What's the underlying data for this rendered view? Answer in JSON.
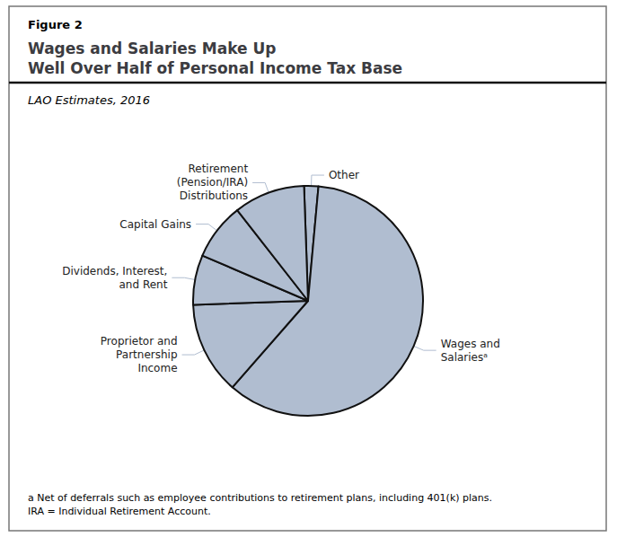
{
  "chart_data": {
    "type": "pie",
    "figure_label": "Figure 2",
    "title": "Wages and Salaries Make Up\nWell Over Half of Personal Income Tax Base",
    "subtitle": "LAO Estimates, 2016",
    "categories": [
      "Other",
      "Wages and\nSalariesᵃ",
      "Proprietor and\nPartnership\nIncome",
      "Dividends, Interest,\nand Rent",
      "Capital Gains",
      "Retirement\n(Pension/IRA)\nDistributions"
    ],
    "values": [
      2,
      60,
      13,
      7,
      8,
      10
    ],
    "color": "#b0bdd0",
    "footnotes": [
      "a Net of deferrals such as employee contributions to retirement plans, including 401(k) plans.",
      "IRA = Individual Retirement Account."
    ]
  }
}
